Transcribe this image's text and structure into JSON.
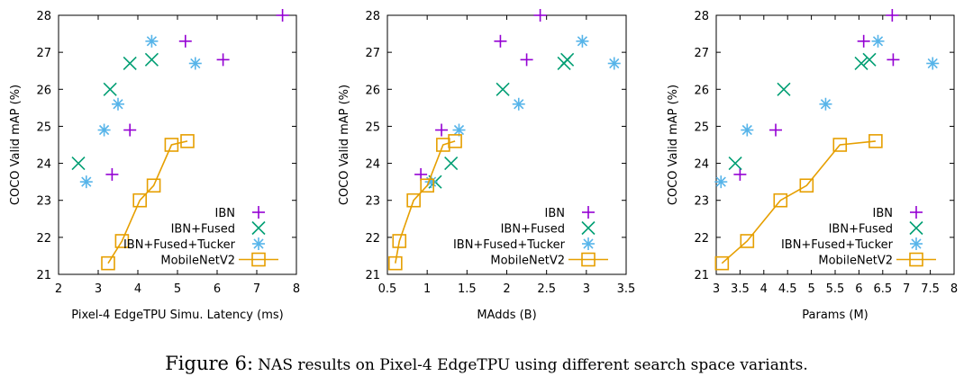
{
  "caption": {
    "label": "Figure 6:",
    "text": "NAS results on Pixel-4 EdgeTPU using different search space variants."
  },
  "colors": {
    "IBN": "#9400d3",
    "IBN+Fused": "#009e73",
    "IBN+Fused+Tucker": "#56b4e9",
    "MobileNetV2": "#e69f00"
  },
  "chart_data": [
    {
      "type": "scatter",
      "xlabel": "Pixel-4 EdgeTPU Simu. Latency (ms)",
      "ylabel": "COCO Valid mAP (%)",
      "xlim": [
        2,
        8
      ],
      "ylim": [
        21,
        28
      ],
      "xticks": [
        2,
        3,
        4,
        5,
        6,
        7,
        8
      ],
      "yticks": [
        21,
        22,
        23,
        24,
        25,
        26,
        27,
        28
      ],
      "legend_position": "bottom-right",
      "series": [
        {
          "name": "IBN",
          "marker": "plus",
          "points": [
            [
              3.35,
              23.7
            ],
            [
              3.8,
              24.9
            ],
            [
              5.2,
              27.3
            ],
            [
              6.15,
              26.8
            ],
            [
              7.65,
              28.0
            ]
          ]
        },
        {
          "name": "IBN+Fused",
          "marker": "cross",
          "points": [
            [
              2.5,
              24.0
            ],
            [
              3.3,
              26.0
            ],
            [
              3.8,
              26.7
            ],
            [
              4.35,
              26.8
            ]
          ]
        },
        {
          "name": "IBN+Fused+Tucker",
          "marker": "star",
          "points": [
            [
              2.7,
              23.5
            ],
            [
              3.15,
              24.9
            ],
            [
              3.5,
              25.6
            ],
            [
              4.35,
              27.3
            ],
            [
              5.45,
              26.7
            ]
          ]
        },
        {
          "name": "MobileNetV2",
          "marker": "square",
          "line": true,
          "points": [
            [
              3.25,
              21.3
            ],
            [
              3.6,
              21.9
            ],
            [
              4.05,
              23.0
            ],
            [
              4.4,
              23.4
            ],
            [
              4.85,
              24.5
            ],
            [
              5.25,
              24.6
            ]
          ]
        }
      ]
    },
    {
      "type": "scatter",
      "xlabel": "MAdds (B)",
      "ylabel": "COCO Valid mAP (%)",
      "xlim": [
        0.5,
        3.5
      ],
      "ylim": [
        21,
        28
      ],
      "xticks": [
        0.5,
        1,
        1.5,
        2,
        2.5,
        3,
        3.5
      ],
      "yticks": [
        21,
        22,
        23,
        24,
        25,
        26,
        27,
        28
      ],
      "legend_position": "bottom-right",
      "series": [
        {
          "name": "IBN",
          "marker": "plus",
          "points": [
            [
              0.92,
              23.7
            ],
            [
              1.18,
              24.9
            ],
            [
              1.92,
              27.3
            ],
            [
              2.25,
              26.8
            ],
            [
              2.42,
              28.0
            ]
          ]
        },
        {
          "name": "IBN+Fused",
          "marker": "cross",
          "points": [
            [
              1.1,
              23.5
            ],
            [
              1.3,
              24.0
            ],
            [
              1.95,
              26.0
            ],
            [
              2.72,
              26.7
            ],
            [
              2.76,
              26.8
            ]
          ]
        },
        {
          "name": "IBN+Fused+Tucker",
          "marker": "star",
          "points": [
            [
              1.05,
              23.5
            ],
            [
              1.4,
              24.9
            ],
            [
              2.15,
              25.6
            ],
            [
              2.95,
              27.3
            ],
            [
              3.35,
              26.7
            ]
          ]
        },
        {
          "name": "MobileNetV2",
          "marker": "square",
          "line": true,
          "points": [
            [
              0.6,
              21.3
            ],
            [
              0.65,
              21.9
            ],
            [
              0.83,
              23.0
            ],
            [
              1.0,
              23.4
            ],
            [
              1.2,
              24.5
            ],
            [
              1.35,
              24.6
            ]
          ]
        }
      ]
    },
    {
      "type": "scatter",
      "xlabel": "Params (M)",
      "ylabel": "COCO Valid mAP (%)",
      "xlim": [
        3,
        8
      ],
      "ylim": [
        21,
        28
      ],
      "xticks": [
        3,
        3.5,
        4,
        4.5,
        5,
        5.5,
        6,
        6.5,
        7,
        7.5,
        8
      ],
      "yticks": [
        21,
        22,
        23,
        24,
        25,
        26,
        27,
        28
      ],
      "legend_position": "bottom-right",
      "series": [
        {
          "name": "IBN",
          "marker": "plus",
          "points": [
            [
              3.5,
              23.7
            ],
            [
              4.25,
              24.9
            ],
            [
              6.1,
              27.3
            ],
            [
              6.72,
              26.8
            ],
            [
              6.7,
              28.0
            ]
          ]
        },
        {
          "name": "IBN+Fused",
          "marker": "cross",
          "points": [
            [
              3.4,
              24.0
            ],
            [
              4.42,
              26.0
            ],
            [
              6.05,
              26.7
            ],
            [
              6.22,
              26.8
            ]
          ]
        },
        {
          "name": "IBN+Fused+Tucker",
          "marker": "star",
          "points": [
            [
              3.1,
              23.5
            ],
            [
              3.65,
              24.9
            ],
            [
              5.3,
              25.6
            ],
            [
              6.4,
              27.3
            ],
            [
              7.55,
              26.7
            ]
          ]
        },
        {
          "name": "MobileNetV2",
          "marker": "square",
          "line": true,
          "points": [
            [
              3.12,
              21.3
            ],
            [
              3.65,
              21.9
            ],
            [
              4.35,
              23.0
            ],
            [
              4.9,
              23.4
            ],
            [
              5.6,
              24.5
            ],
            [
              6.35,
              24.6
            ]
          ]
        }
      ]
    }
  ]
}
